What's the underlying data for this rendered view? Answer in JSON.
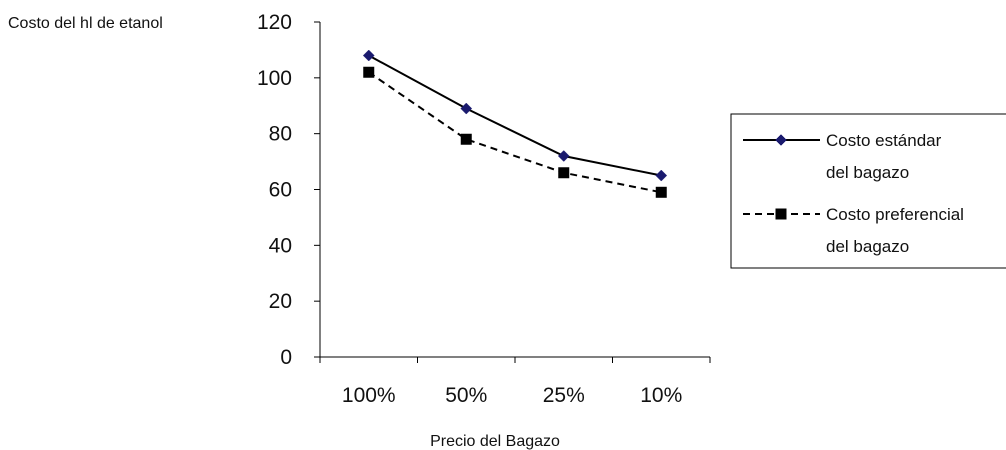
{
  "chart_data": {
    "type": "line",
    "ylabel": "Costo del hl de etanol",
    "xlabel": "Precio del Bagazo",
    "categories": [
      "100%",
      "50%",
      "25%",
      "10%"
    ],
    "ylim": [
      0,
      120
    ],
    "yticks": [
      0,
      20,
      40,
      60,
      80,
      100,
      120
    ],
    "grid": false,
    "legend_position": "right",
    "series": [
      {
        "name_lines": [
          "Costo estándar",
          "del bagazo"
        ],
        "values": [
          108,
          89,
          72,
          65
        ],
        "color": "#000000",
        "marker_color": "#1a1a6e",
        "style": "solid",
        "marker": "diamond"
      },
      {
        "name_lines": [
          "Costo preferencial",
          "del bagazo"
        ],
        "values": [
          102,
          78,
          66,
          59
        ],
        "color": "#000000",
        "marker_color": "#000000",
        "style": "dashed",
        "marker": "square"
      }
    ]
  }
}
